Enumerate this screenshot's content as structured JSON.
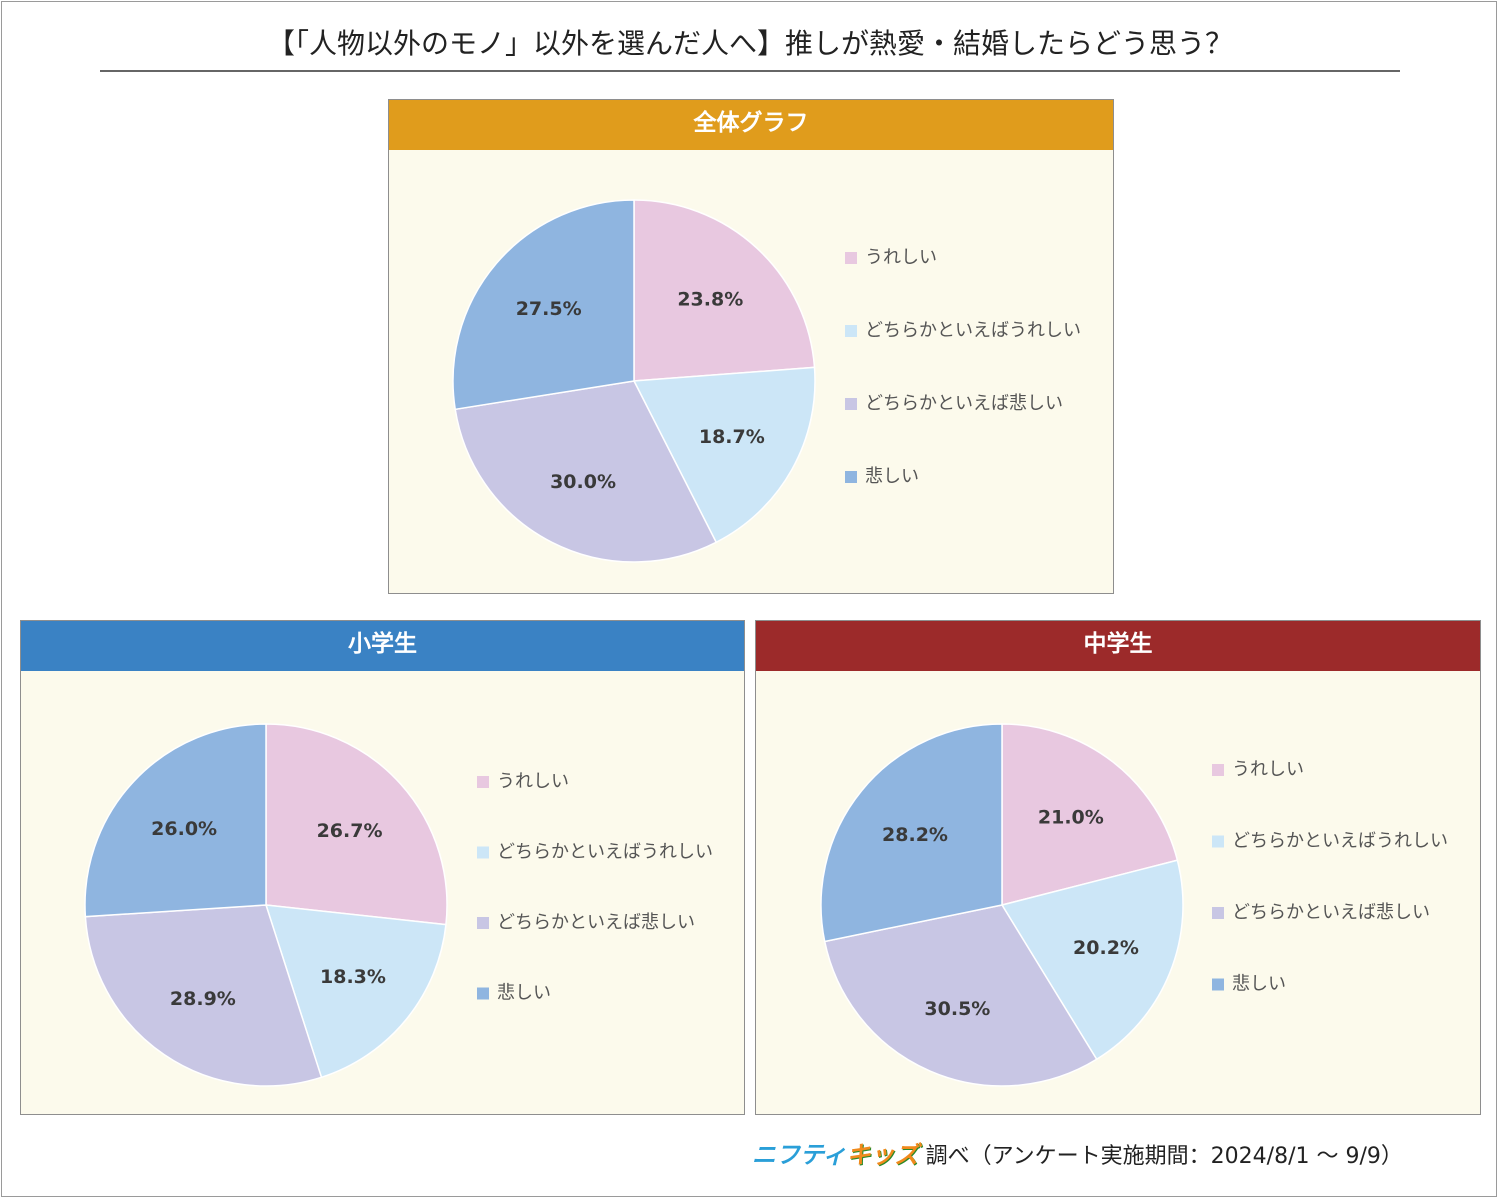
{
  "title": "【「人物以外のモノ」以外を選んだ人へ】推しが熱愛・結婚したらどう思う？",
  "credit": {
    "logo_part1": "ニフティ",
    "logo_part2": "キッズ",
    "text": "調べ（アンケート実施期間：2024/8/1 ～ 9/9）"
  },
  "colors": {
    "series": [
      "#e8c8e0",
      "#cce6f7",
      "#c8c6e4",
      "#8fb5e0"
    ],
    "header_overall": "#e09c1c",
    "header_elementary": "#3a82c4",
    "header_junior": "#9c2a2a",
    "panel_bg": "#fcfaec"
  },
  "chart_data": [
    {
      "type": "pie",
      "title": "全体グラフ",
      "categories": [
        "うれしい",
        "どちらかといえばうれしい",
        "どちらかといえば悲しい",
        "悲しい"
      ],
      "values": [
        23.8,
        18.7,
        30.0,
        27.5
      ],
      "value_labels": [
        "23.8%",
        "18.7%",
        "30.0%",
        "27.5%"
      ],
      "legend": "right"
    },
    {
      "type": "pie",
      "title": "小学生",
      "categories": [
        "うれしい",
        "どちらかといえばうれしい",
        "どちらかといえば悲しい",
        "悲しい"
      ],
      "values": [
        26.7,
        18.3,
        28.9,
        26.0
      ],
      "value_labels": [
        "26.7%",
        "18.3%",
        "28.9%",
        "26.0%"
      ],
      "legend": "right"
    },
    {
      "type": "pie",
      "title": "中学生",
      "categories": [
        "うれしい",
        "どちらかといえばうれしい",
        "どちらかといえば悲しい",
        "悲しい"
      ],
      "values": [
        21.0,
        20.2,
        30.5,
        28.2
      ],
      "value_labels": [
        "21.0%",
        "20.2%",
        "30.5%",
        "28.2%"
      ],
      "legend": "right"
    }
  ]
}
